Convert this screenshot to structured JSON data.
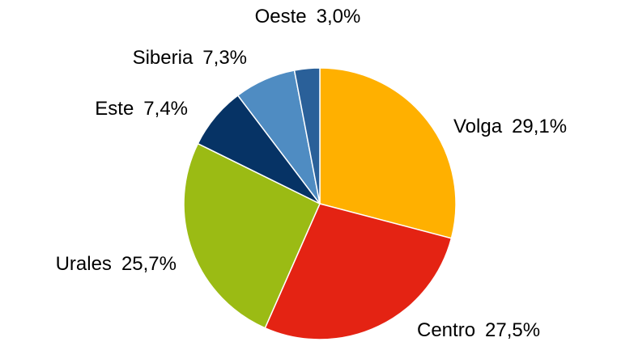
{
  "chart_data": {
    "type": "pie",
    "categories": [
      "Volga",
      "Centro",
      "Urales",
      "Este",
      "Siberia",
      "Oeste"
    ],
    "values": [
      29.1,
      27.5,
      25.7,
      7.4,
      7.3,
      3.0
    ],
    "value_labels": [
      "29,1%",
      "27,5%",
      "25,7%",
      "7,4%",
      "7,3%",
      "3,0%"
    ],
    "colors": [
      "#ffb000",
      "#e42313",
      "#9bbb14",
      "#063365",
      "#4f8cc2",
      "#2a6099"
    ]
  }
}
